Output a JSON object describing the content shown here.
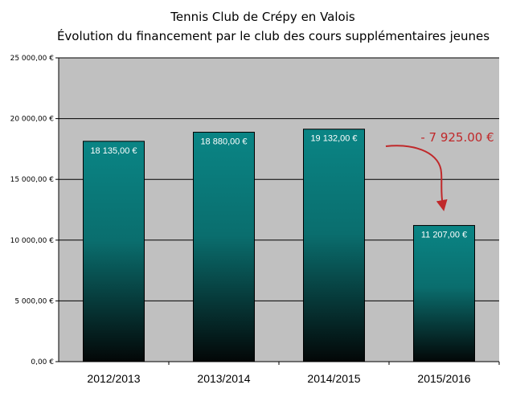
{
  "chart_data": {
    "type": "bar",
    "title": "Tennis Club de Crépy en Valois",
    "subtitle": "Évolution du financement par le club des cours supplémentaires jeunes",
    "categories": [
      "2012/2013",
      "2013/2014",
      "2014/2015",
      "2015/2016"
    ],
    "values": [
      18135,
      18880,
      19132,
      11207
    ],
    "data_labels": [
      "18 135,00 €",
      "18 880,00 €",
      "19 132,00 €",
      "11 207,00 €"
    ],
    "ylim": [
      0,
      25000
    ],
    "yticks": [
      0,
      5000,
      10000,
      15000,
      20000,
      25000
    ],
    "ytick_labels": [
      "0,00 €",
      "5 000,00 €",
      "10 000,00 €",
      "15 000,00 €",
      "20 000,00 €",
      "25 000,00 €"
    ],
    "xlabel": "",
    "ylabel": "",
    "grid": true,
    "annotation": {
      "text": "- 7 925.00 €",
      "from_category": "2014/2015",
      "to_category": "2015/2016"
    }
  },
  "colors": {
    "plot_background": "#c0c0c0",
    "bar_top": "#0a8585",
    "bar_bottom": "#030707",
    "annotation": "#c0282a",
    "gridline": "#000000"
  }
}
